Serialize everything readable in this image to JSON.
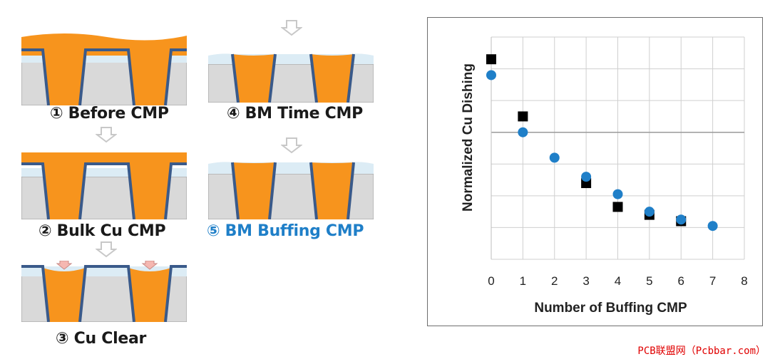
{
  "colors": {
    "copper": "#f7941d",
    "liner": "#3a5a8a",
    "dielectric": "#d9d9d9",
    "cap_layer": "#dcecf5",
    "arrow": "#c8c8c8",
    "highlight": "#1f7fc8",
    "pad_marker": "#f5b7b1",
    "series_square": "#000000",
    "series_circle": "#1f7fc8",
    "watermark": "#e00000"
  },
  "steps": [
    {
      "label": "① Before CMP"
    },
    {
      "label": "② Bulk Cu CMP"
    },
    {
      "label": "③ Cu Clear"
    },
    {
      "label": "④ BM Time CMP"
    },
    {
      "label": "⑤ BM Buffing CMP"
    }
  ],
  "chart_data": {
    "type": "scatter",
    "xlabel": "Number of Buffing CMP",
    "ylabel": "Normalized Cu Dishing",
    "xlim": [
      0,
      8
    ],
    "ylim": [
      0,
      7
    ],
    "x_ticks": [
      "0",
      "1",
      "2",
      "3",
      "4",
      "5",
      "6",
      "7",
      "8"
    ],
    "y_ticks_labeled": false,
    "grid": true,
    "series": [
      {
        "marker": "square",
        "color": "#000000",
        "points": [
          [
            0,
            6.3
          ],
          [
            1,
            4.5
          ],
          [
            3,
            2.4
          ],
          [
            4,
            1.65
          ],
          [
            5,
            1.4
          ],
          [
            6,
            1.2
          ]
        ]
      },
      {
        "marker": "circle",
        "color": "#1f7fc8",
        "points": [
          [
            0,
            5.8
          ],
          [
            1,
            4.0
          ],
          [
            2,
            3.2
          ],
          [
            3,
            2.6
          ],
          [
            4,
            2.05
          ],
          [
            5,
            1.5
          ],
          [
            6,
            1.25
          ],
          [
            7,
            1.05
          ]
        ]
      }
    ]
  },
  "watermark": "PCB联盟网（Pcbbar.com）"
}
